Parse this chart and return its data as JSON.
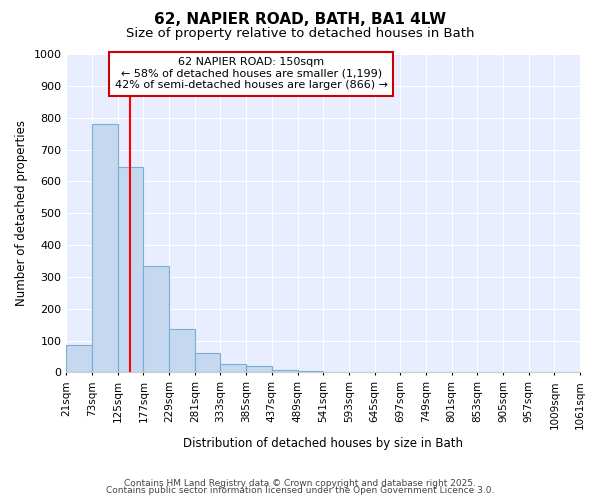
{
  "title1": "62, NAPIER ROAD, BATH, BA1 4LW",
  "title2": "Size of property relative to detached houses in Bath",
  "xlabel": "Distribution of detached houses by size in Bath",
  "ylabel": "Number of detached properties",
  "bar_color": "#c5d8f0",
  "bar_edge_color": "#7aadd4",
  "bg_color": "#e8eeff",
  "grid_color": "#ffffff",
  "red_line_x": 150,
  "annotation_text": "62 NAPIER ROAD: 150sqm\n← 58% of detached houses are smaller (1,199)\n42% of semi-detached houses are larger (866) →",
  "annotation_box_color": "#ffffff",
  "annotation_box_edge_color": "#cc0000",
  "categories": [
    "21sqm",
    "73sqm",
    "125sqm",
    "177sqm",
    "229sqm",
    "281sqm",
    "333sqm",
    "385sqm",
    "437sqm",
    "489sqm",
    "541sqm",
    "593sqm",
    "645sqm",
    "697sqm",
    "749sqm",
    "801sqm",
    "853sqm",
    "905sqm",
    "957sqm",
    "1009sqm",
    "1061sqm"
  ],
  "bin_edges": [
    21,
    73,
    125,
    177,
    229,
    281,
    333,
    385,
    437,
    489,
    541,
    593,
    645,
    697,
    749,
    801,
    853,
    905,
    957,
    1009,
    1061
  ],
  "values": [
    85,
    780,
    645,
    335,
    135,
    60,
    25,
    20,
    8,
    3,
    2,
    0,
    0,
    0,
    0,
    0,
    0,
    0,
    0,
    0
  ],
  "ylim": [
    0,
    1000
  ],
  "yticks": [
    0,
    100,
    200,
    300,
    400,
    500,
    600,
    700,
    800,
    900,
    1000
  ],
  "footer1": "Contains HM Land Registry data © Crown copyright and database right 2025.",
  "footer2": "Contains public sector information licensed under the Open Government Licence 3.0."
}
